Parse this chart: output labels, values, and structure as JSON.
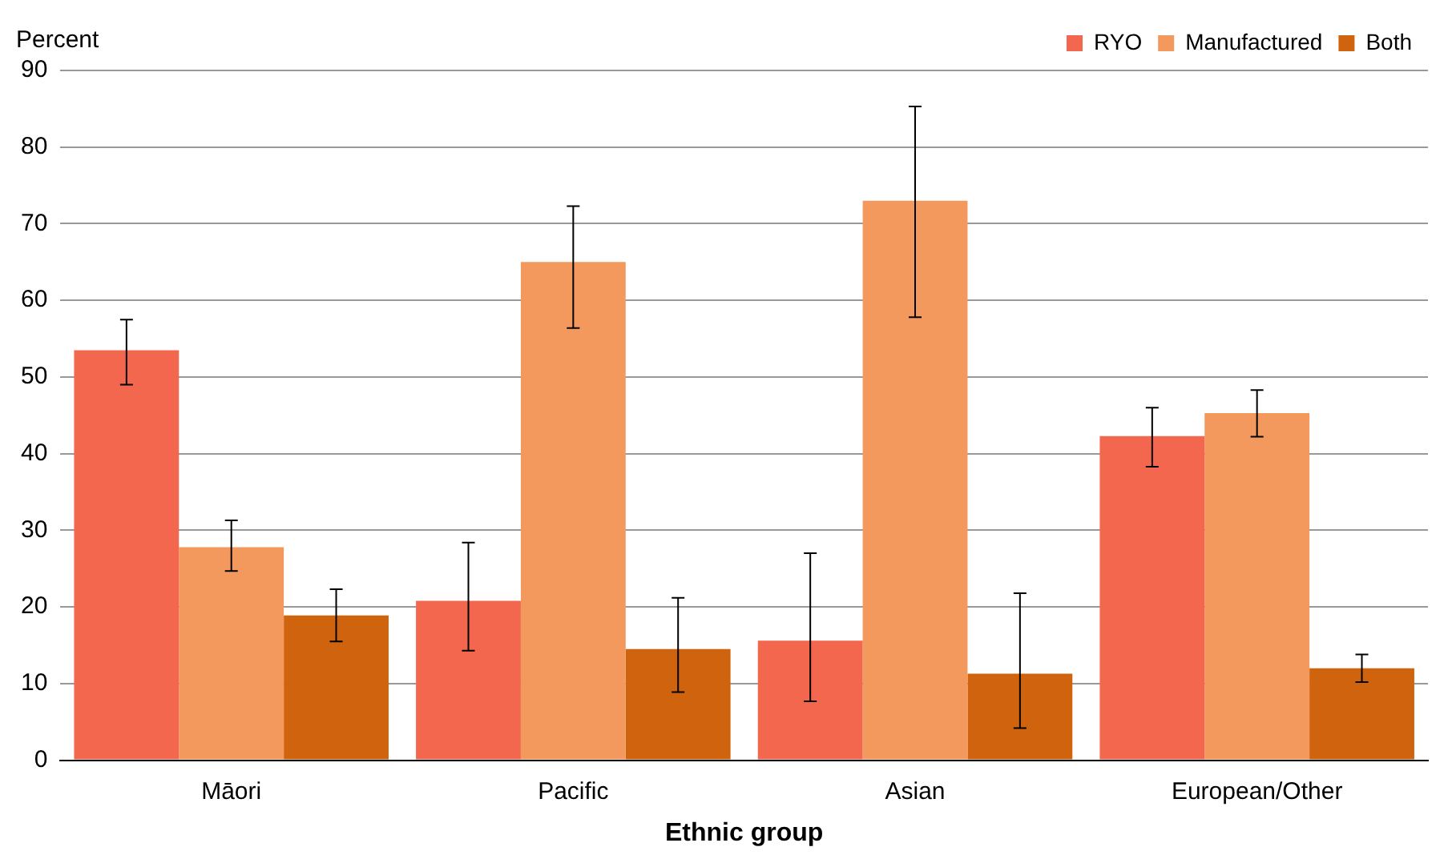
{
  "chart_data": {
    "type": "bar",
    "ylabel": "Percent",
    "xlabel": "Ethnic group",
    "categories": [
      "Māori",
      "Pacific",
      "Asian",
      "European/Other"
    ],
    "series": [
      {
        "name": "RYO",
        "color": "#f4674f",
        "values": [
          53.5,
          20.8,
          15.6,
          42.3
        ],
        "errors": [
          [
            49,
            57.5
          ],
          [
            14.3,
            28.4
          ],
          [
            7.7,
            27
          ],
          [
            38.3,
            46
          ]
        ]
      },
      {
        "name": "Manufactured",
        "color": "#f4995e",
        "values": [
          27.8,
          65,
          73,
          45.3
        ],
        "errors": [
          [
            24.7,
            31.3
          ],
          [
            56.4,
            72.3
          ],
          [
            57.8,
            85.3
          ],
          [
            42.2,
            48.3
          ]
        ]
      },
      {
        "name": "Both",
        "color": "#d0640e",
        "values": [
          18.9,
          14.5,
          11.3,
          12
        ],
        "errors": [
          [
            15.5,
            22.3
          ],
          [
            8.9,
            21.2
          ],
          [
            4.2,
            21.8
          ],
          [
            10.2,
            13.8
          ]
        ]
      }
    ],
    "ylim": [
      0,
      90
    ],
    "yticks": [
      0,
      10,
      20,
      30,
      40,
      50,
      60,
      70,
      80,
      90
    ],
    "grid": "y",
    "legend": "top right"
  }
}
